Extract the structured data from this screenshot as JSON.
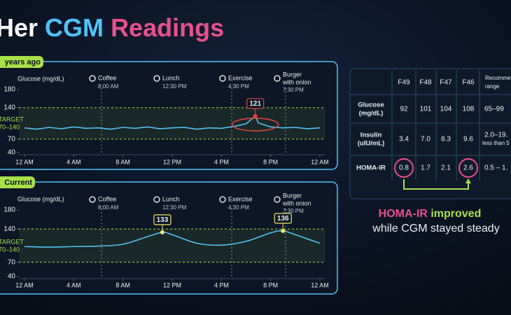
{
  "title": {
    "her": "Her",
    "cgm": "CGM",
    "readings": "Readings"
  },
  "chart_data": [
    {
      "type": "line",
      "tag": "years ago",
      "y_label": "Glucose (mg/dL)",
      "target_label": "TARGET",
      "target_range_label": "70–140",
      "target_range": [
        70,
        140
      ],
      "events": [
        {
          "label": "Coffee",
          "time": "8:00 AM"
        },
        {
          "label": "Lunch",
          "time": "12:30 PM"
        },
        {
          "label": "Exercise",
          "time": "4:30 PM"
        },
        {
          "label": "Burger",
          "detail": "with onion",
          "time": "7:30 PM"
        }
      ],
      "x": [
        0,
        1,
        2,
        3,
        4,
        5,
        6,
        7,
        8,
        9,
        10,
        11,
        12,
        13,
        14,
        15,
        16,
        17,
        18,
        18.75,
        19,
        20,
        21,
        22,
        23,
        24
      ],
      "series": [
        {
          "color": "#4fc3f7",
          "values": [
            95,
            92,
            96,
            93,
            97,
            94,
            95,
            92,
            96,
            94,
            97,
            93,
            95,
            96,
            92,
            95,
            94,
            98,
            104,
            121,
            106,
            97,
            95,
            96,
            93,
            95
          ]
        }
      ],
      "labeled_points": [
        19
      ],
      "label_color": "#e8453c",
      "smooth": false,
      "xlim": [
        0,
        24
      ],
      "xticks": [
        {
          "value": 0,
          "label": "12 AM"
        },
        {
          "value": 4,
          "label": "4 AM"
        },
        {
          "value": 8,
          "label": "8 AM"
        },
        {
          "value": 12,
          "label": "12 PM"
        },
        {
          "value": 16,
          "label": "4 PM"
        },
        {
          "value": 20,
          "label": "8 PM"
        },
        {
          "value": 24,
          "label": "12 AM"
        }
      ],
      "ylim": [
        40,
        180
      ],
      "yticks": [
        40,
        70,
        140,
        180
      ]
    },
    {
      "type": "line",
      "tag": "Current",
      "y_label": "Glucose (mg/dL)",
      "target_label": "TARGET",
      "target_range_label": "70–140",
      "target_range": [
        70,
        140
      ],
      "events": [
        {
          "label": "Coffee",
          "time": "8:00 AM"
        },
        {
          "label": "Lunch",
          "time": "12:30 PM"
        },
        {
          "label": "Exercise",
          "time": "4:30 PM"
        },
        {
          "label": "Burger",
          "detail": "with onion",
          "time": "7:30 PM"
        }
      ],
      "x": [
        0,
        2,
        4,
        6,
        8,
        10,
        11.2,
        12,
        14,
        16,
        18,
        20,
        21,
        22,
        24
      ],
      "series": [
        {
          "color": "#4fc3f7",
          "values": [
            103,
            102,
            103,
            104,
            108,
            124,
            133,
            128,
            110,
            106,
            114,
            132,
            136,
            128,
            110
          ]
        }
      ],
      "labeled_points": [
        6,
        12
      ],
      "label_color": "#f5e663",
      "smooth": true,
      "xlim": [
        0,
        24
      ],
      "xticks": [
        {
          "value": 0,
          "label": "12 AM"
        },
        {
          "value": 4,
          "label": "4 AM"
        },
        {
          "value": 8,
          "label": "8 AM"
        },
        {
          "value": 12,
          "label": "12 PM"
        },
        {
          "value": 16,
          "label": "4 PM"
        },
        {
          "value": 20,
          "label": "8 PM"
        },
        {
          "value": 24,
          "label": "12 AM"
        }
      ],
      "ylim": [
        40,
        180
      ],
      "yticks": [
        40,
        70,
        140,
        180
      ]
    }
  ],
  "table": {
    "header": [
      "F49",
      "F48",
      "F47",
      "F46"
    ],
    "rec_header": [
      "Recommen",
      "range"
    ],
    "rows": [
      {
        "label": [
          "Glucose",
          "(mg/dL)"
        ],
        "cells": [
          "92",
          "101",
          "104",
          "108"
        ],
        "range": [
          "65–99"
        ]
      },
      {
        "label": [
          "Insulin",
          "(uIU/mL)"
        ],
        "cells": [
          "3.4",
          "7.0",
          "8.3",
          "9.6"
        ],
        "range": [
          "2.0–19.",
          "less than 5"
        ]
      },
      {
        "label": [
          "HOMA-IR"
        ],
        "cells": [
          "0.8",
          "1.7",
          "2.1",
          "2.6"
        ],
        "range": [
          "0.5 – 1."
        ]
      }
    ]
  },
  "caption": {
    "metric": "HOMA-IR",
    "verb": "improved",
    "line2": "while CGM stayed steady"
  }
}
